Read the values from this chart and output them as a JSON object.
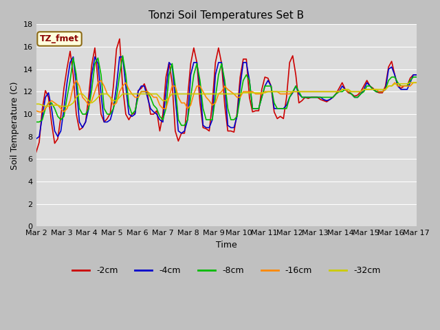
{
  "title": "Tonzi Soil Temperatures Set B",
  "xlabel": "Time",
  "ylabel": "Soil Temperature (C)",
  "ylim": [
    0,
    18
  ],
  "annotation": "TZ_fmet",
  "annotation_color": "#8B0000",
  "annotation_bg": "#FFFFDD",
  "x_tick_labels": [
    "Mar 2",
    "Mar 3",
    "Mar 4",
    "Mar 5",
    "Mar 6",
    "Mar 7",
    "Mar 8",
    "Mar 9",
    "Mar 10",
    "Mar 11",
    "Mar 12",
    "Mar 13",
    "Mar 14",
    "Mar 15",
    "Mar 16",
    "Mar 17"
  ],
  "legend_labels": [
    "-2cm",
    "-4cm",
    "-8cm",
    "-16cm",
    "-32cm"
  ],
  "legend_colors": [
    "#CC0000",
    "#0000CC",
    "#00BB00",
    "#FF8800",
    "#CCCC00"
  ],
  "n_days": 15,
  "pts_per_day": 8,
  "m2cm": [
    6.6,
    7.5,
    10.5,
    12.1,
    11.5,
    9.2,
    7.4,
    7.8,
    9.8,
    12.3,
    14.1,
    15.6,
    13.5,
    10.0,
    8.6,
    8.8,
    9.3,
    11.6,
    14.4,
    15.9,
    13.0,
    10.0,
    9.3,
    9.6,
    10.1,
    12.5,
    15.8,
    16.7,
    12.4,
    10.0,
    9.5,
    10.0,
    10.1,
    12.1,
    12.3,
    12.7,
    11.9,
    10.0,
    10.0,
    10.3,
    8.5,
    10.0,
    13.3,
    14.6,
    12.8,
    8.5,
    7.6,
    8.3,
    8.3,
    11.5,
    14.5,
    15.9,
    14.6,
    11.0,
    8.8,
    8.7,
    8.5,
    11.0,
    14.6,
    15.9,
    14.5,
    10.8,
    8.5,
    8.5,
    8.4,
    10.1,
    13.3,
    14.9,
    14.9,
    11.5,
    10.2,
    10.3,
    10.3,
    12.2,
    13.3,
    13.2,
    12.5,
    10.2,
    9.6,
    9.8,
    9.6,
    11.5,
    14.6,
    15.2,
    13.5,
    11.0,
    11.2,
    11.5,
    11.4,
    11.5,
    11.5,
    11.5,
    11.3,
    11.2,
    11.1,
    11.3,
    11.5,
    11.8,
    12.3,
    12.8,
    12.2,
    11.9,
    11.8,
    11.6,
    11.7,
    12.0,
    12.5,
    13.0,
    12.5,
    12.3,
    12.0,
    11.9,
    11.9,
    12.5,
    14.2,
    14.7,
    13.5,
    12.5,
    12.3,
    12.5,
    12.5,
    13.2,
    13.5,
    13.5
  ],
  "m4cm": [
    7.8,
    8.0,
    9.8,
    11.5,
    11.9,
    10.5,
    8.5,
    8.0,
    8.5,
    10.5,
    12.8,
    14.6,
    15.1,
    12.5,
    9.3,
    8.8,
    9.3,
    10.5,
    13.5,
    15.1,
    14.5,
    11.8,
    9.3,
    9.3,
    9.5,
    10.5,
    12.5,
    15.1,
    15.1,
    12.5,
    10.0,
    9.8,
    10.0,
    12.0,
    12.5,
    12.5,
    11.5,
    10.5,
    10.2,
    10.0,
    9.5,
    9.3,
    12.0,
    14.6,
    14.3,
    11.5,
    8.5,
    8.3,
    8.5,
    9.5,
    13.5,
    14.6,
    14.6,
    12.5,
    9.0,
    8.8,
    8.8,
    9.5,
    13.5,
    14.6,
    14.6,
    12.5,
    9.0,
    8.8,
    8.8,
    9.8,
    12.5,
    14.6,
    14.6,
    13.0,
    10.5,
    10.5,
    10.5,
    11.5,
    12.5,
    13.0,
    12.5,
    10.5,
    10.5,
    10.5,
    10.5,
    10.8,
    11.5,
    11.9,
    12.5,
    11.8,
    11.5,
    11.5,
    11.5,
    11.5,
    11.5,
    11.5,
    11.5,
    11.3,
    11.2,
    11.3,
    11.5,
    11.8,
    12.0,
    12.5,
    12.2,
    12.0,
    11.8,
    11.5,
    11.5,
    11.8,
    12.2,
    12.8,
    12.5,
    12.2,
    12.0,
    12.0,
    12.0,
    12.2,
    14.0,
    14.2,
    13.5,
    12.5,
    12.2,
    12.2,
    12.2,
    12.8,
    13.5,
    13.5
  ],
  "m8cm": [
    9.3,
    9.3,
    9.5,
    10.5,
    11.0,
    11.0,
    10.5,
    9.8,
    9.5,
    9.8,
    11.5,
    13.0,
    15.0,
    13.5,
    10.5,
    10.0,
    10.0,
    10.5,
    12.2,
    14.5,
    15.0,
    13.5,
    10.5,
    10.0,
    10.0,
    10.5,
    11.5,
    13.5,
    15.2,
    13.5,
    10.8,
    10.0,
    10.3,
    11.5,
    12.0,
    12.0,
    12.0,
    11.5,
    10.8,
    10.5,
    9.8,
    9.5,
    10.5,
    13.5,
    14.5,
    12.5,
    9.5,
    9.0,
    9.0,
    9.5,
    11.5,
    13.5,
    14.5,
    13.0,
    10.5,
    9.5,
    9.5,
    9.5,
    11.5,
    13.5,
    14.5,
    13.0,
    10.5,
    9.5,
    9.5,
    9.8,
    11.5,
    13.0,
    13.5,
    13.0,
    10.5,
    10.5,
    10.5,
    11.5,
    12.5,
    12.5,
    12.5,
    11.0,
    10.5,
    10.5,
    10.5,
    10.5,
    11.5,
    12.0,
    12.5,
    12.0,
    11.5,
    11.5,
    11.5,
    11.5,
    11.5,
    11.5,
    11.5,
    11.5,
    11.5,
    11.5,
    11.5,
    11.8,
    12.0,
    12.0,
    12.2,
    12.0,
    11.8,
    11.5,
    11.5,
    11.8,
    12.0,
    12.5,
    12.5,
    12.2,
    12.0,
    12.0,
    12.0,
    12.2,
    13.0,
    13.3,
    13.3,
    12.8,
    12.5,
    12.5,
    12.5,
    13.0,
    13.3,
    13.3
  ],
  "m16cm": [
    10.3,
    10.2,
    10.2,
    10.5,
    11.0,
    11.2,
    11.0,
    10.8,
    10.5,
    10.2,
    10.5,
    11.2,
    12.5,
    13.0,
    12.5,
    11.5,
    11.2,
    10.8,
    11.2,
    12.0,
    12.8,
    13.0,
    12.5,
    11.8,
    11.5,
    10.8,
    11.0,
    12.0,
    12.5,
    12.8,
    12.2,
    11.8,
    11.5,
    11.5,
    12.0,
    12.0,
    12.0,
    11.8,
    11.5,
    11.5,
    10.8,
    10.5,
    10.5,
    11.5,
    12.5,
    12.5,
    11.5,
    11.0,
    11.0,
    10.5,
    10.8,
    11.8,
    12.5,
    12.5,
    12.0,
    11.5,
    11.2,
    10.8,
    11.0,
    11.8,
    12.0,
    12.5,
    12.2,
    12.0,
    11.8,
    11.5,
    11.5,
    12.0,
    12.0,
    12.0,
    12.0,
    11.8,
    11.8,
    11.8,
    12.0,
    12.0,
    12.0,
    12.0,
    12.0,
    11.8,
    11.8,
    11.8,
    11.8,
    12.0,
    12.0,
    12.0,
    12.0,
    12.0,
    12.0,
    12.0,
    12.0,
    12.0,
    12.0,
    12.0,
    12.0,
    12.0,
    12.0,
    12.0,
    12.0,
    12.2,
    12.2,
    12.0,
    12.0,
    12.0,
    12.0,
    12.0,
    12.2,
    12.2,
    12.2,
    12.2,
    12.2,
    12.0,
    12.0,
    12.2,
    12.5,
    12.5,
    12.8,
    12.5,
    12.5,
    12.5,
    12.5,
    12.5,
    12.8,
    12.8
  ],
  "m32cm": [
    10.9,
    10.9,
    10.8,
    10.7,
    10.7,
    10.8,
    10.8,
    10.8,
    10.7,
    10.7,
    10.7,
    10.8,
    11.0,
    11.5,
    11.8,
    11.8,
    11.5,
    11.2,
    11.0,
    11.2,
    11.5,
    11.8,
    11.8,
    11.8,
    11.5,
    11.2,
    11.2,
    11.5,
    11.8,
    11.8,
    11.8,
    11.8,
    11.8,
    11.8,
    11.8,
    11.8,
    11.8,
    11.8,
    11.8,
    11.8,
    11.5,
    11.2,
    11.2,
    11.5,
    11.8,
    11.8,
    11.8,
    11.8,
    11.8,
    11.8,
    11.8,
    11.8,
    11.8,
    11.8,
    11.8,
    11.8,
    11.8,
    11.8,
    11.8,
    11.8,
    11.8,
    11.8,
    11.8,
    11.8,
    11.8,
    11.8,
    11.8,
    11.9,
    11.9,
    11.9,
    11.9,
    11.9,
    11.9,
    11.9,
    11.9,
    12.0,
    12.0,
    12.0,
    12.0,
    12.0,
    12.0,
    12.0,
    12.0,
    12.0,
    12.0,
    12.0,
    12.0,
    12.0,
    12.0,
    12.0,
    12.0,
    12.0,
    12.0,
    12.0,
    12.0,
    12.0,
    12.0,
    12.0,
    12.0,
    12.2,
    12.2,
    12.2,
    12.0,
    12.0,
    12.0,
    12.0,
    12.2,
    12.2,
    12.2,
    12.2,
    12.2,
    12.2,
    12.2,
    12.2,
    12.5,
    12.5,
    12.7,
    12.7,
    12.7,
    12.7,
    12.7,
    12.8,
    12.8,
    12.8
  ]
}
